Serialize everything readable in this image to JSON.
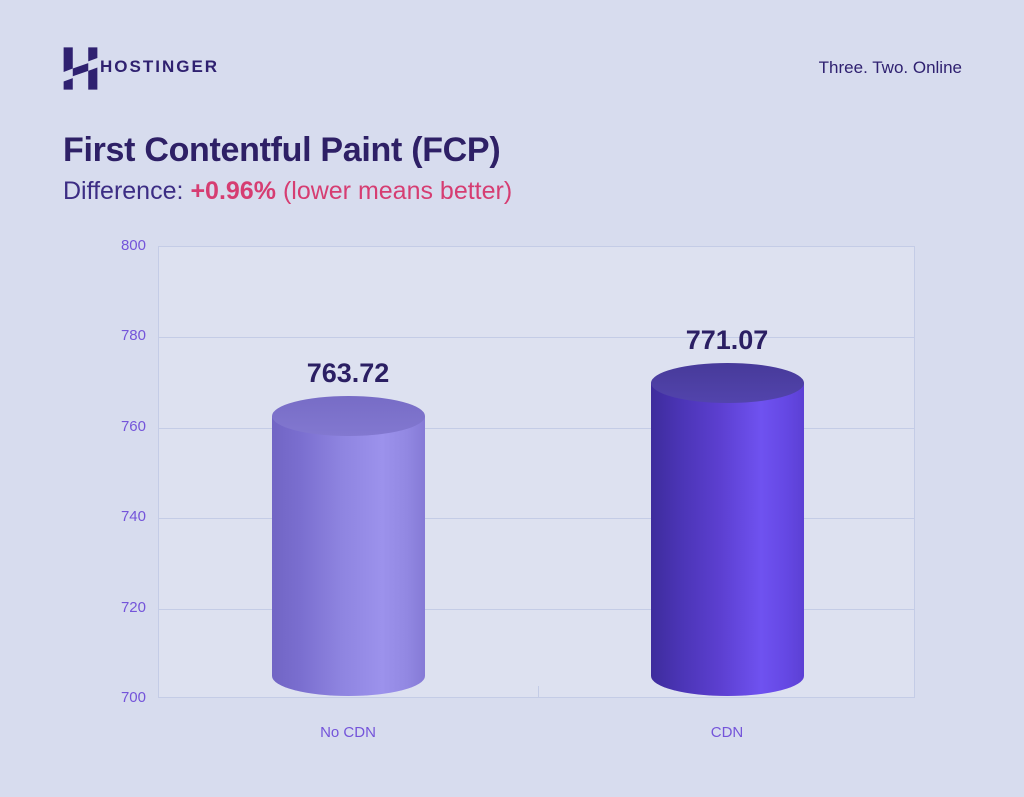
{
  "header": {
    "brand": "HOSTINGER",
    "tagline": "Three. Two. Online"
  },
  "title": "First Contentful Paint (FCP)",
  "subtitle": {
    "prefix": "Difference:",
    "value": "+0.96%",
    "note": "(lower means better)"
  },
  "colors": {
    "background": "#d7dcee",
    "dark_text": "#2f2170",
    "title_text": "#2e2066",
    "accent_pink": "#d63d72",
    "axis_label_purple": "#7454da",
    "grid_line": "#c4cce6",
    "value_label_text": "#2b1f63",
    "bar_no_cdn_main": "#8e84e0",
    "bar_cdn_main": "#5335c0"
  },
  "chart_data": {
    "type": "bar",
    "variant": "3d-cylinder",
    "title": "First Contentful Paint (FCP)",
    "xlabel": "",
    "ylabel": "",
    "categories": [
      "No CDN",
      "CDN"
    ],
    "values": [
      763.72,
      771.07
    ],
    "value_labels": [
      "763.72",
      "771.07"
    ],
    "ylim": [
      700,
      800
    ],
    "yticks": [
      700,
      720,
      740,
      760,
      780,
      800
    ],
    "grid": true,
    "legend": false,
    "bar_styles": [
      {
        "body_gradient": [
          "#7165c4",
          "#7a6ecf",
          "#8e84e0",
          "#9c92ec",
          "#9288e2",
          "#857ad6"
        ],
        "top_gradient": [
          "#776cc6",
          "#8278d0"
        ]
      },
      {
        "body_gradient": [
          "#3e2c9c",
          "#4a34b4",
          "#5c3fd0",
          "#6f52f0",
          "#6548e4",
          "#5c40d4"
        ],
        "top_gradient": [
          "#473a9a",
          "#5244ac"
        ]
      }
    ]
  }
}
